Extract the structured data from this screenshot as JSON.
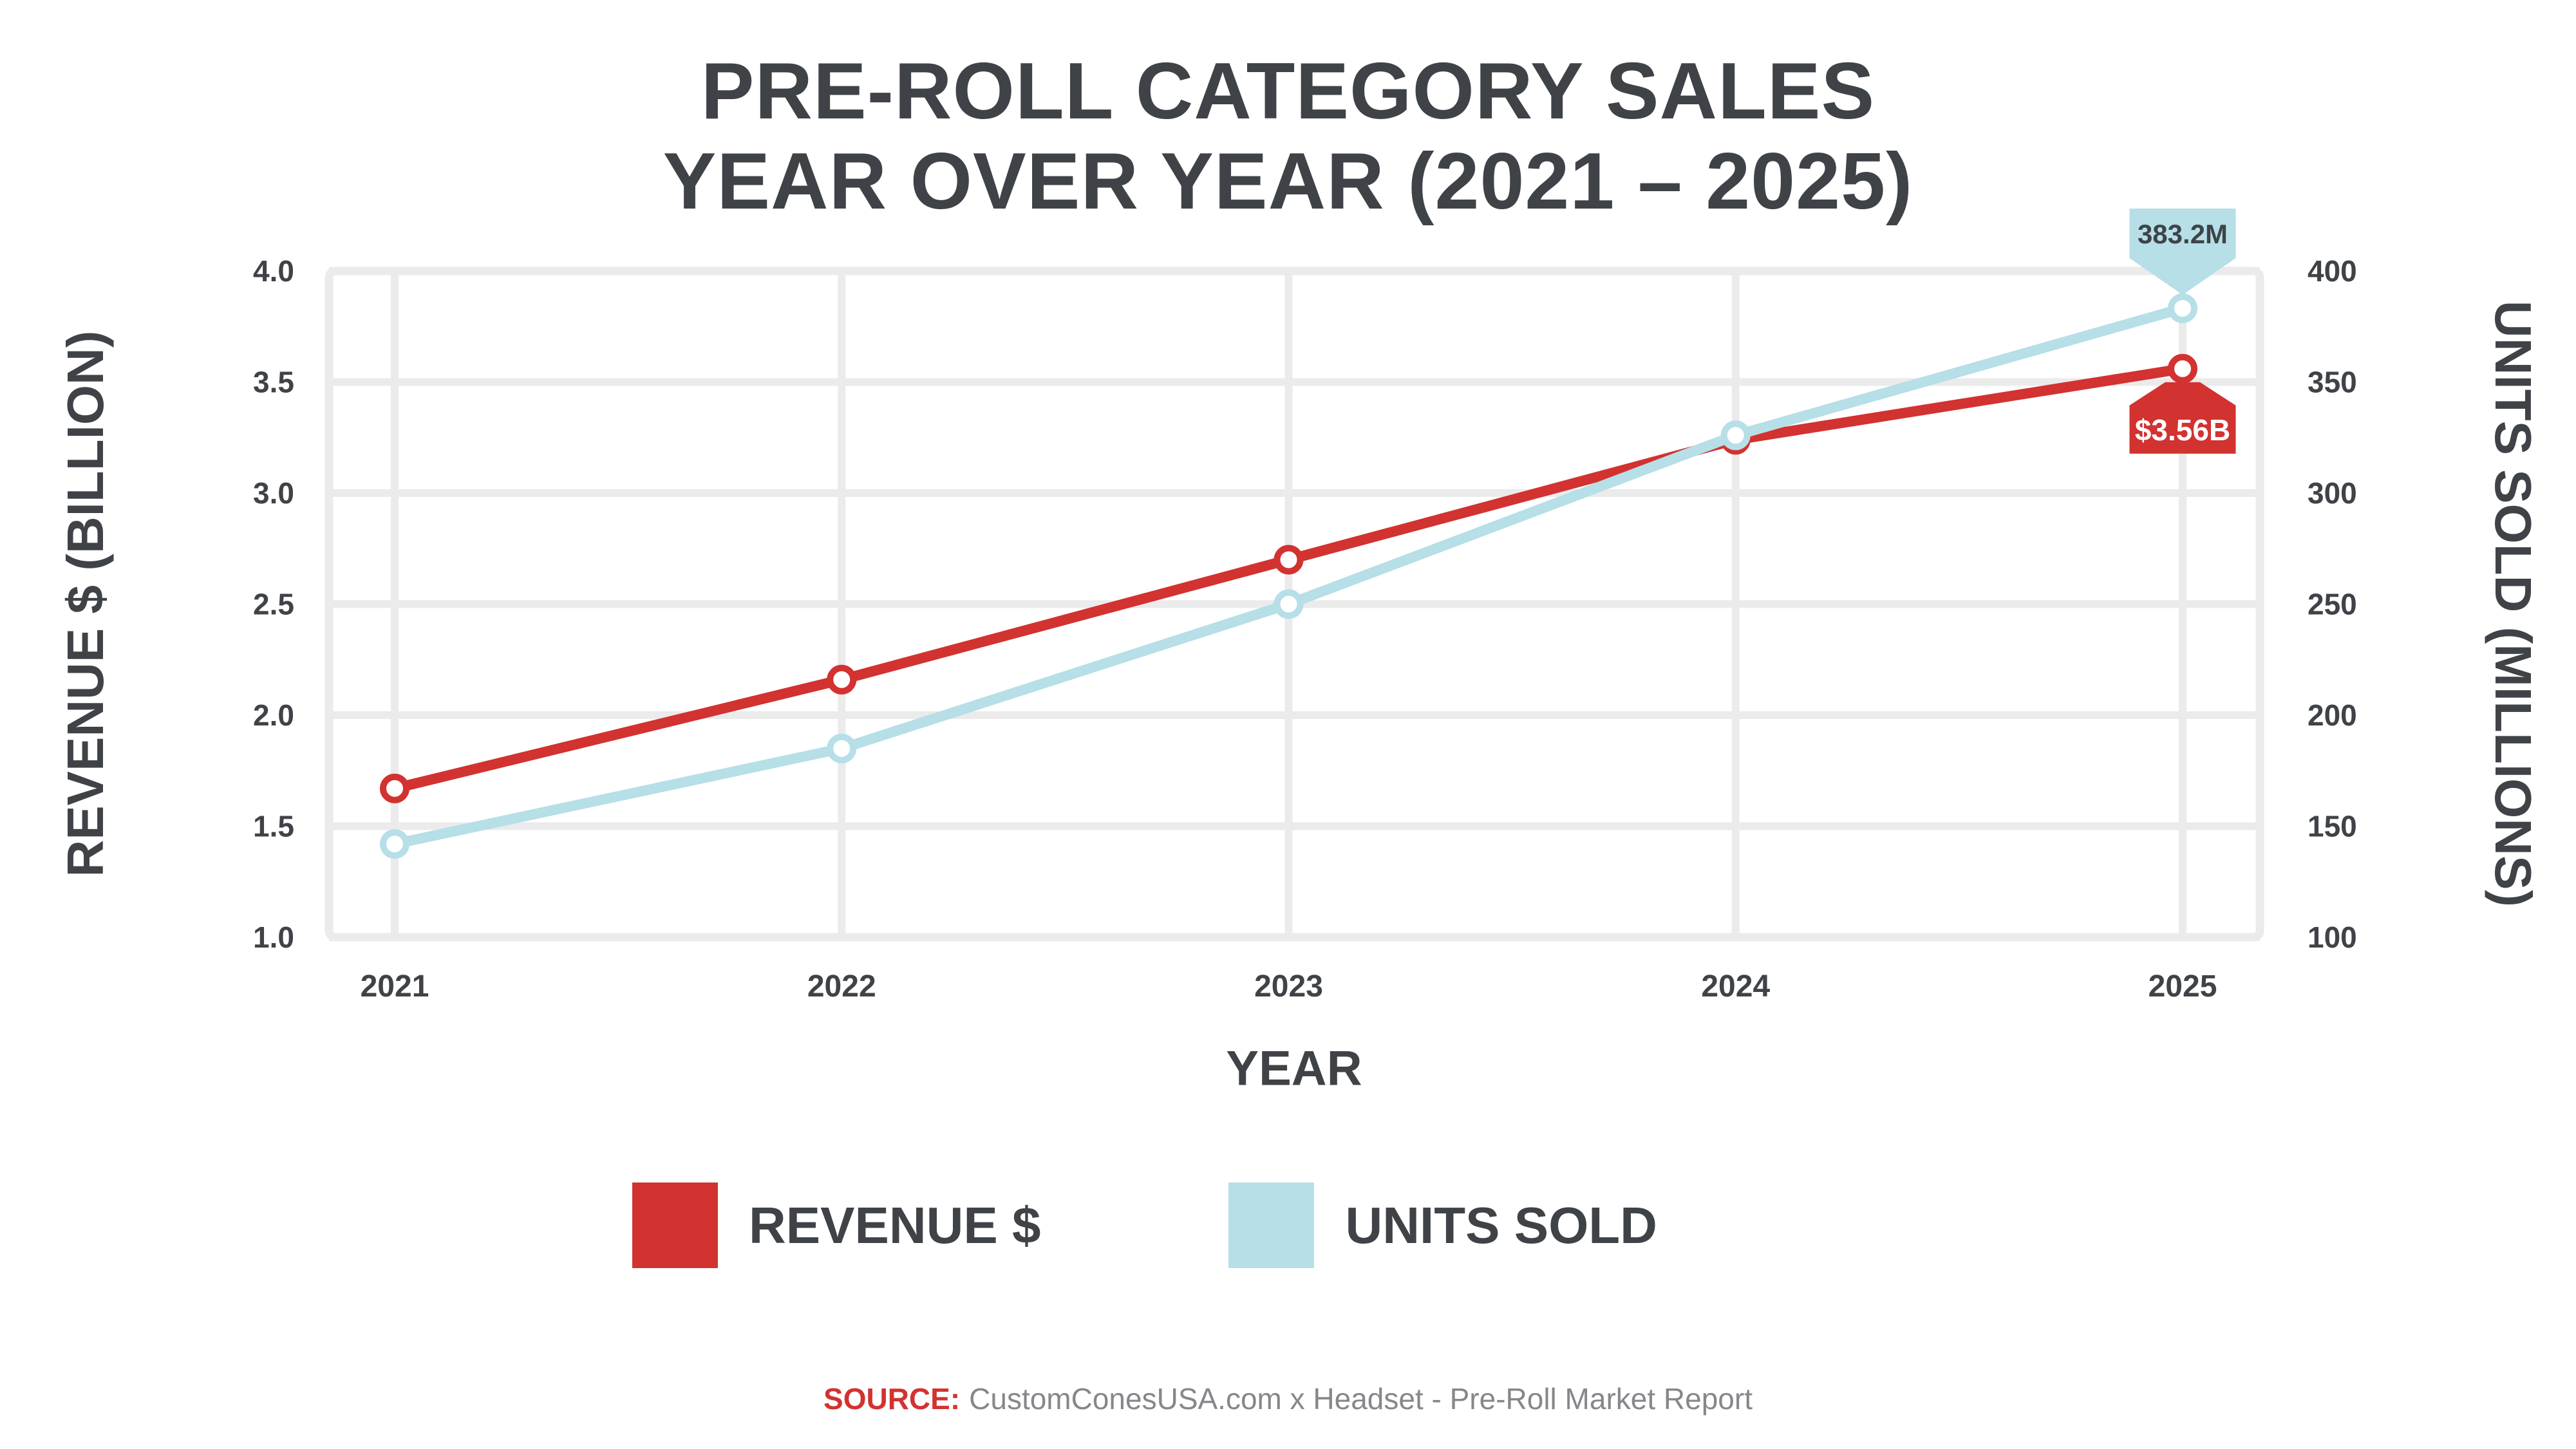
{
  "page": {
    "title_line1": "PRE-ROLL CATEGORY SALES",
    "title_line2": "YEAR OVER YEAR (2021 – 2025)",
    "source_label": "SOURCE:",
    "source_text": "CustomConesUSA.com x Headset - Pre-Roll Market Report"
  },
  "colors": {
    "revenue": "#d23230",
    "units": "#b6dfe7",
    "text_dark": "#3f4347",
    "grid": "#ebebeb",
    "source_gray": "#85878a",
    "marker_fill": "#ffffff"
  },
  "legend": {
    "items": [
      {
        "label": "REVENUE $",
        "color_key": "revenue"
      },
      {
        "label": "UNITS SOLD",
        "color_key": "units"
      }
    ]
  },
  "chart_data": {
    "type": "line",
    "title": "PRE-ROLL CATEGORY SALES YEAR OVER YEAR (2021 – 2025)",
    "categories": [
      "2021",
      "2022",
      "2023",
      "2024",
      "2025"
    ],
    "x_axis_label": "YEAR",
    "series": [
      {
        "name": "REVENUE $",
        "axis": "left",
        "color_key": "revenue",
        "values": [
          1.67,
          2.16,
          2.7,
          3.24,
          3.56
        ]
      },
      {
        "name": "UNITS SOLD",
        "axis": "right",
        "color_key": "units",
        "values": [
          142,
          185,
          250,
          326,
          383.2
        ]
      }
    ],
    "y_left": {
      "label": "REVENUE $ (BILLION)",
      "min": 1.0,
      "max": 4.0,
      "ticks": [
        "4.0",
        "3.5",
        "3.0",
        "2.5",
        "2.0",
        "1.5",
        "1.0"
      ]
    },
    "y_right": {
      "label": "UNITS SOLD (MILLIONS)",
      "min": 100,
      "max": 400,
      "ticks": [
        "400",
        "350",
        "300",
        "250",
        "200",
        "150",
        "100"
      ]
    },
    "grid": true,
    "legend_position": "bottom",
    "annotations": [
      {
        "target": "UNITS SOLD",
        "year": "2025",
        "text": "383.2M",
        "style": "units"
      },
      {
        "target": "REVENUE $",
        "year": "2025",
        "text": "$3.56B",
        "style": "revenue"
      }
    ]
  }
}
